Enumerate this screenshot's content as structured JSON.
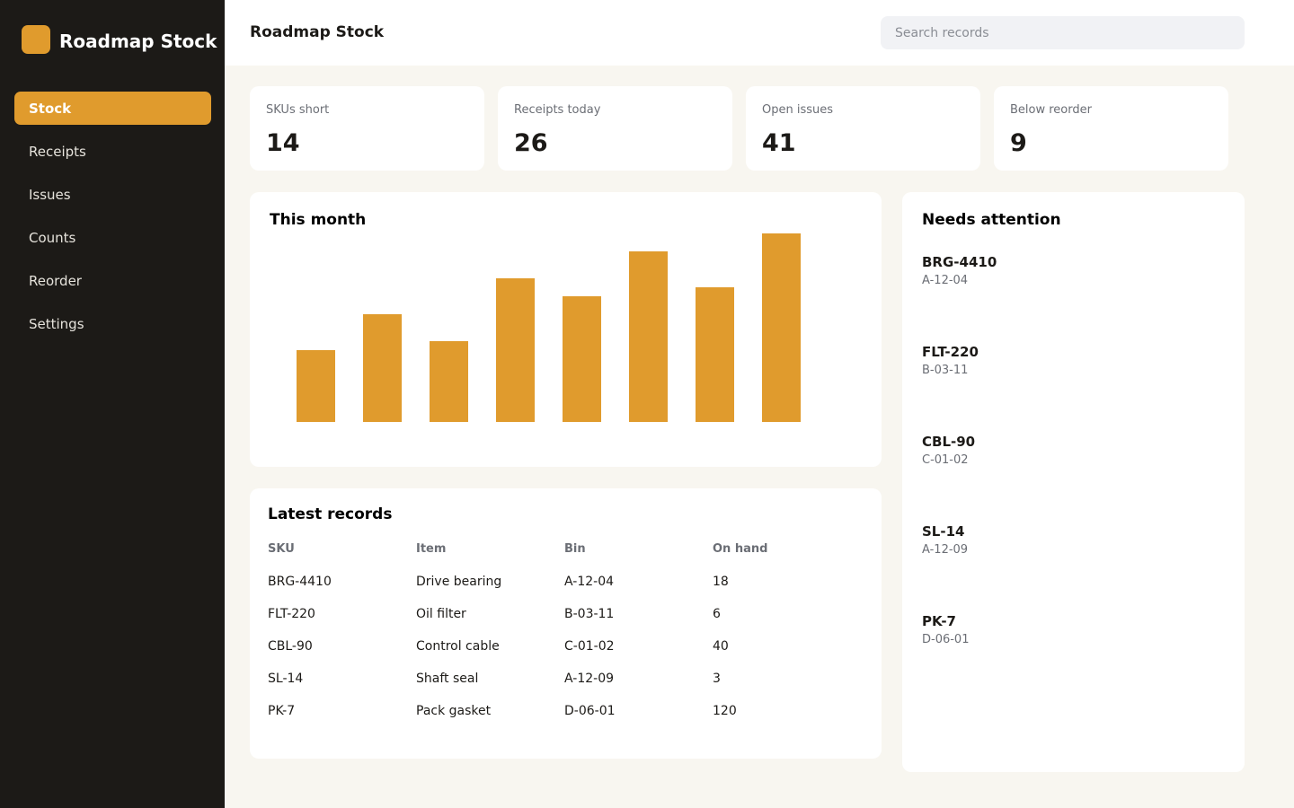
{
  "sidebar": {
    "brand": "Roadmap Stock",
    "nav": [
      "Stock",
      "Receipts",
      "Issues",
      "Counts",
      "Reorder",
      "Settings"
    ],
    "active": 0
  },
  "header": {
    "title": "Roadmap Stock",
    "search_placeholder": "Search records"
  },
  "kpis": [
    {
      "label": "SKUs short",
      "value": 14
    },
    {
      "label": "Receipts today",
      "value": 26
    },
    {
      "label": "Open issues",
      "value": 41
    },
    {
      "label": "Below reorder",
      "value": 9
    }
  ],
  "chart": {
    "type": "bar",
    "title": "This month",
    "values": [
      80,
      120,
      90,
      160,
      140,
      190,
      150,
      210
    ],
    "color": "#e09b2d"
  },
  "table": {
    "title": "Latest records",
    "columns": [
      "SKU",
      "Item",
      "Bin",
      "On hand"
    ],
    "rows": [
      [
        "BRG-4410",
        "Drive bearing",
        "A-12-04",
        18
      ],
      [
        "FLT-220",
        "Oil filter",
        "B-03-11",
        6
      ],
      [
        "CBL-90",
        "Control cable",
        "C-01-02",
        40
      ],
      [
        "SL-14",
        "Shaft seal",
        "A-12-09",
        3
      ],
      [
        "PK-7",
        "Pack gasket",
        "D-06-01",
        120
      ]
    ]
  },
  "attention": {
    "title": "Needs attention",
    "items": [
      {
        "sku": "BRG-4410",
        "bin": "A-12-04"
      },
      {
        "sku": "FLT-220",
        "bin": "B-03-11"
      },
      {
        "sku": "CBL-90",
        "bin": "C-01-02"
      },
      {
        "sku": "SL-14",
        "bin": "A-12-09"
      },
      {
        "sku": "PK-7",
        "bin": "D-06-01"
      }
    ]
  }
}
